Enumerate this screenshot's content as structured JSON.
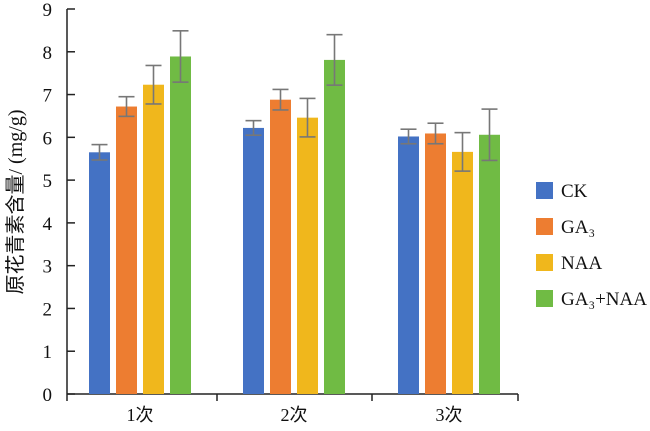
{
  "chart_data": {
    "type": "bar",
    "title": "",
    "xlabel": "",
    "ylabel": "原花青素含量/ (mg/g)",
    "ylim": [
      0,
      9
    ],
    "yticks": [
      0,
      1,
      2,
      3,
      4,
      5,
      6,
      7,
      8,
      9
    ],
    "grid": false,
    "legend_position": "right",
    "categories": [
      "1次",
      "2次",
      "3次"
    ],
    "series": [
      {
        "name": "CK",
        "color": "#4472c4",
        "values": [
          5.65,
          6.22,
          6.02
        ],
        "errors": [
          0.18,
          0.17,
          0.17
        ]
      },
      {
        "name": "GA₃",
        "color": "#ed7d31",
        "values": [
          6.72,
          6.88,
          6.09
        ],
        "errors": [
          0.23,
          0.24,
          0.24
        ]
      },
      {
        "name": "NAA",
        "color": "#f0b71c",
        "values": [
          7.23,
          6.46,
          5.66
        ],
        "errors": [
          0.45,
          0.45,
          0.45
        ]
      },
      {
        "name": "GA₃+NAA",
        "color": "#70bb44",
        "values": [
          7.89,
          7.81,
          6.06
        ],
        "errors": [
          0.6,
          0.59,
          0.6
        ]
      }
    ]
  }
}
